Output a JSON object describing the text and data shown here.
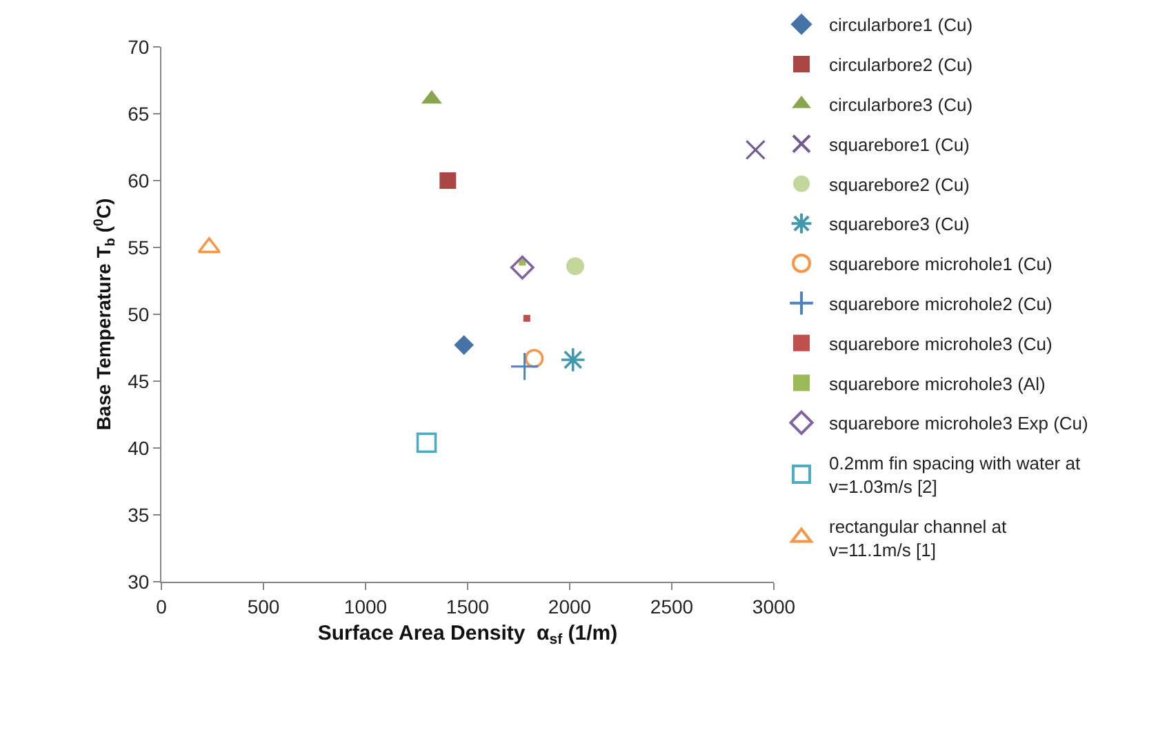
{
  "chart_data": {
    "type": "scatter",
    "xlabel": "Surface Area Density  α$_{sf}$ (1/m)",
    "ylabel": "Base Temperature T$_{b}$ ($^{0}$C)",
    "xlim": [
      0,
      3000
    ],
    "xticks": [
      0,
      500,
      1000,
      1500,
      2000,
      2500,
      3000
    ],
    "ylim": [
      30,
      70
    ],
    "yticks": [
      30,
      35,
      40,
      45,
      50,
      55,
      60,
      65,
      70
    ],
    "legend": "right",
    "series": [
      {
        "name": "circularbore1 (Cu)",
        "color": "#4572a7",
        "marker": "diamond",
        "x": [
          1482
        ],
        "values": [
          47.7
        ]
      },
      {
        "name": "circularbore2 (Cu)",
        "color": "#aa4643",
        "marker": "square",
        "x": [
          1403
        ],
        "values": [
          60
        ]
      },
      {
        "name": "circularbore3 (Cu)",
        "color": "#89a54e",
        "marker": "triangle",
        "x": [
          1324
        ],
        "values": [
          66.1
        ]
      },
      {
        "name": "squarebore1 (Cu)",
        "color": "#71588f",
        "marker": "cross",
        "x": [
          2910
        ],
        "values": [
          62.3
        ]
      },
      {
        "name": "squarebore2 (Cu)",
        "color": "#c3d69b",
        "marker": "circle",
        "x": [
          2027
        ],
        "values": [
          53.6
        ]
      },
      {
        "name": "squarebore3 (Cu)",
        "color": "#4198af",
        "marker": "cross-asterisk",
        "x": [
          2016
        ],
        "values": [
          46.6
        ]
      },
      {
        "name": "squarebore microhole1 (Cu)",
        "color": "#f79646",
        "marker": "circle-open",
        "x": [
          1826
        ],
        "values": [
          46.7
        ]
      },
      {
        "name": "squarebore microhole2 (Cu)",
        "color": "#4f81bd",
        "marker": "plus",
        "x": [
          1779
        ],
        "values": [
          46.1
        ]
      },
      {
        "name": "squarebore microhole3 (Cu)",
        "color": "#c0504d",
        "marker": "square-small",
        "x": [
          1790
        ],
        "values": [
          49.7
        ]
      },
      {
        "name": "squarebore microhole3 (Al)",
        "color": "#9bbb59",
        "marker": "square-small",
        "x": [
          1768
        ],
        "values": [
          53.9
        ]
      },
      {
        "name": "squarebore microhole3 Exp (Cu)",
        "color": "#8064a2",
        "marker": "diamond-open",
        "x": [
          1768
        ],
        "values": [
          53.5
        ]
      },
      {
        "name": "0.2mm fin spacing with water at\nv=1.03m/s [2]",
        "color": "#4bacc6",
        "marker": "square-open",
        "x": [
          1299
        ],
        "values": [
          40.4
        ]
      },
      {
        "name": "rectangular channel at\nv=11.1m/s [1]",
        "color": "#f79646",
        "marker": "triangle-open",
        "x": [
          234
        ],
        "values": [
          55
        ]
      }
    ]
  }
}
